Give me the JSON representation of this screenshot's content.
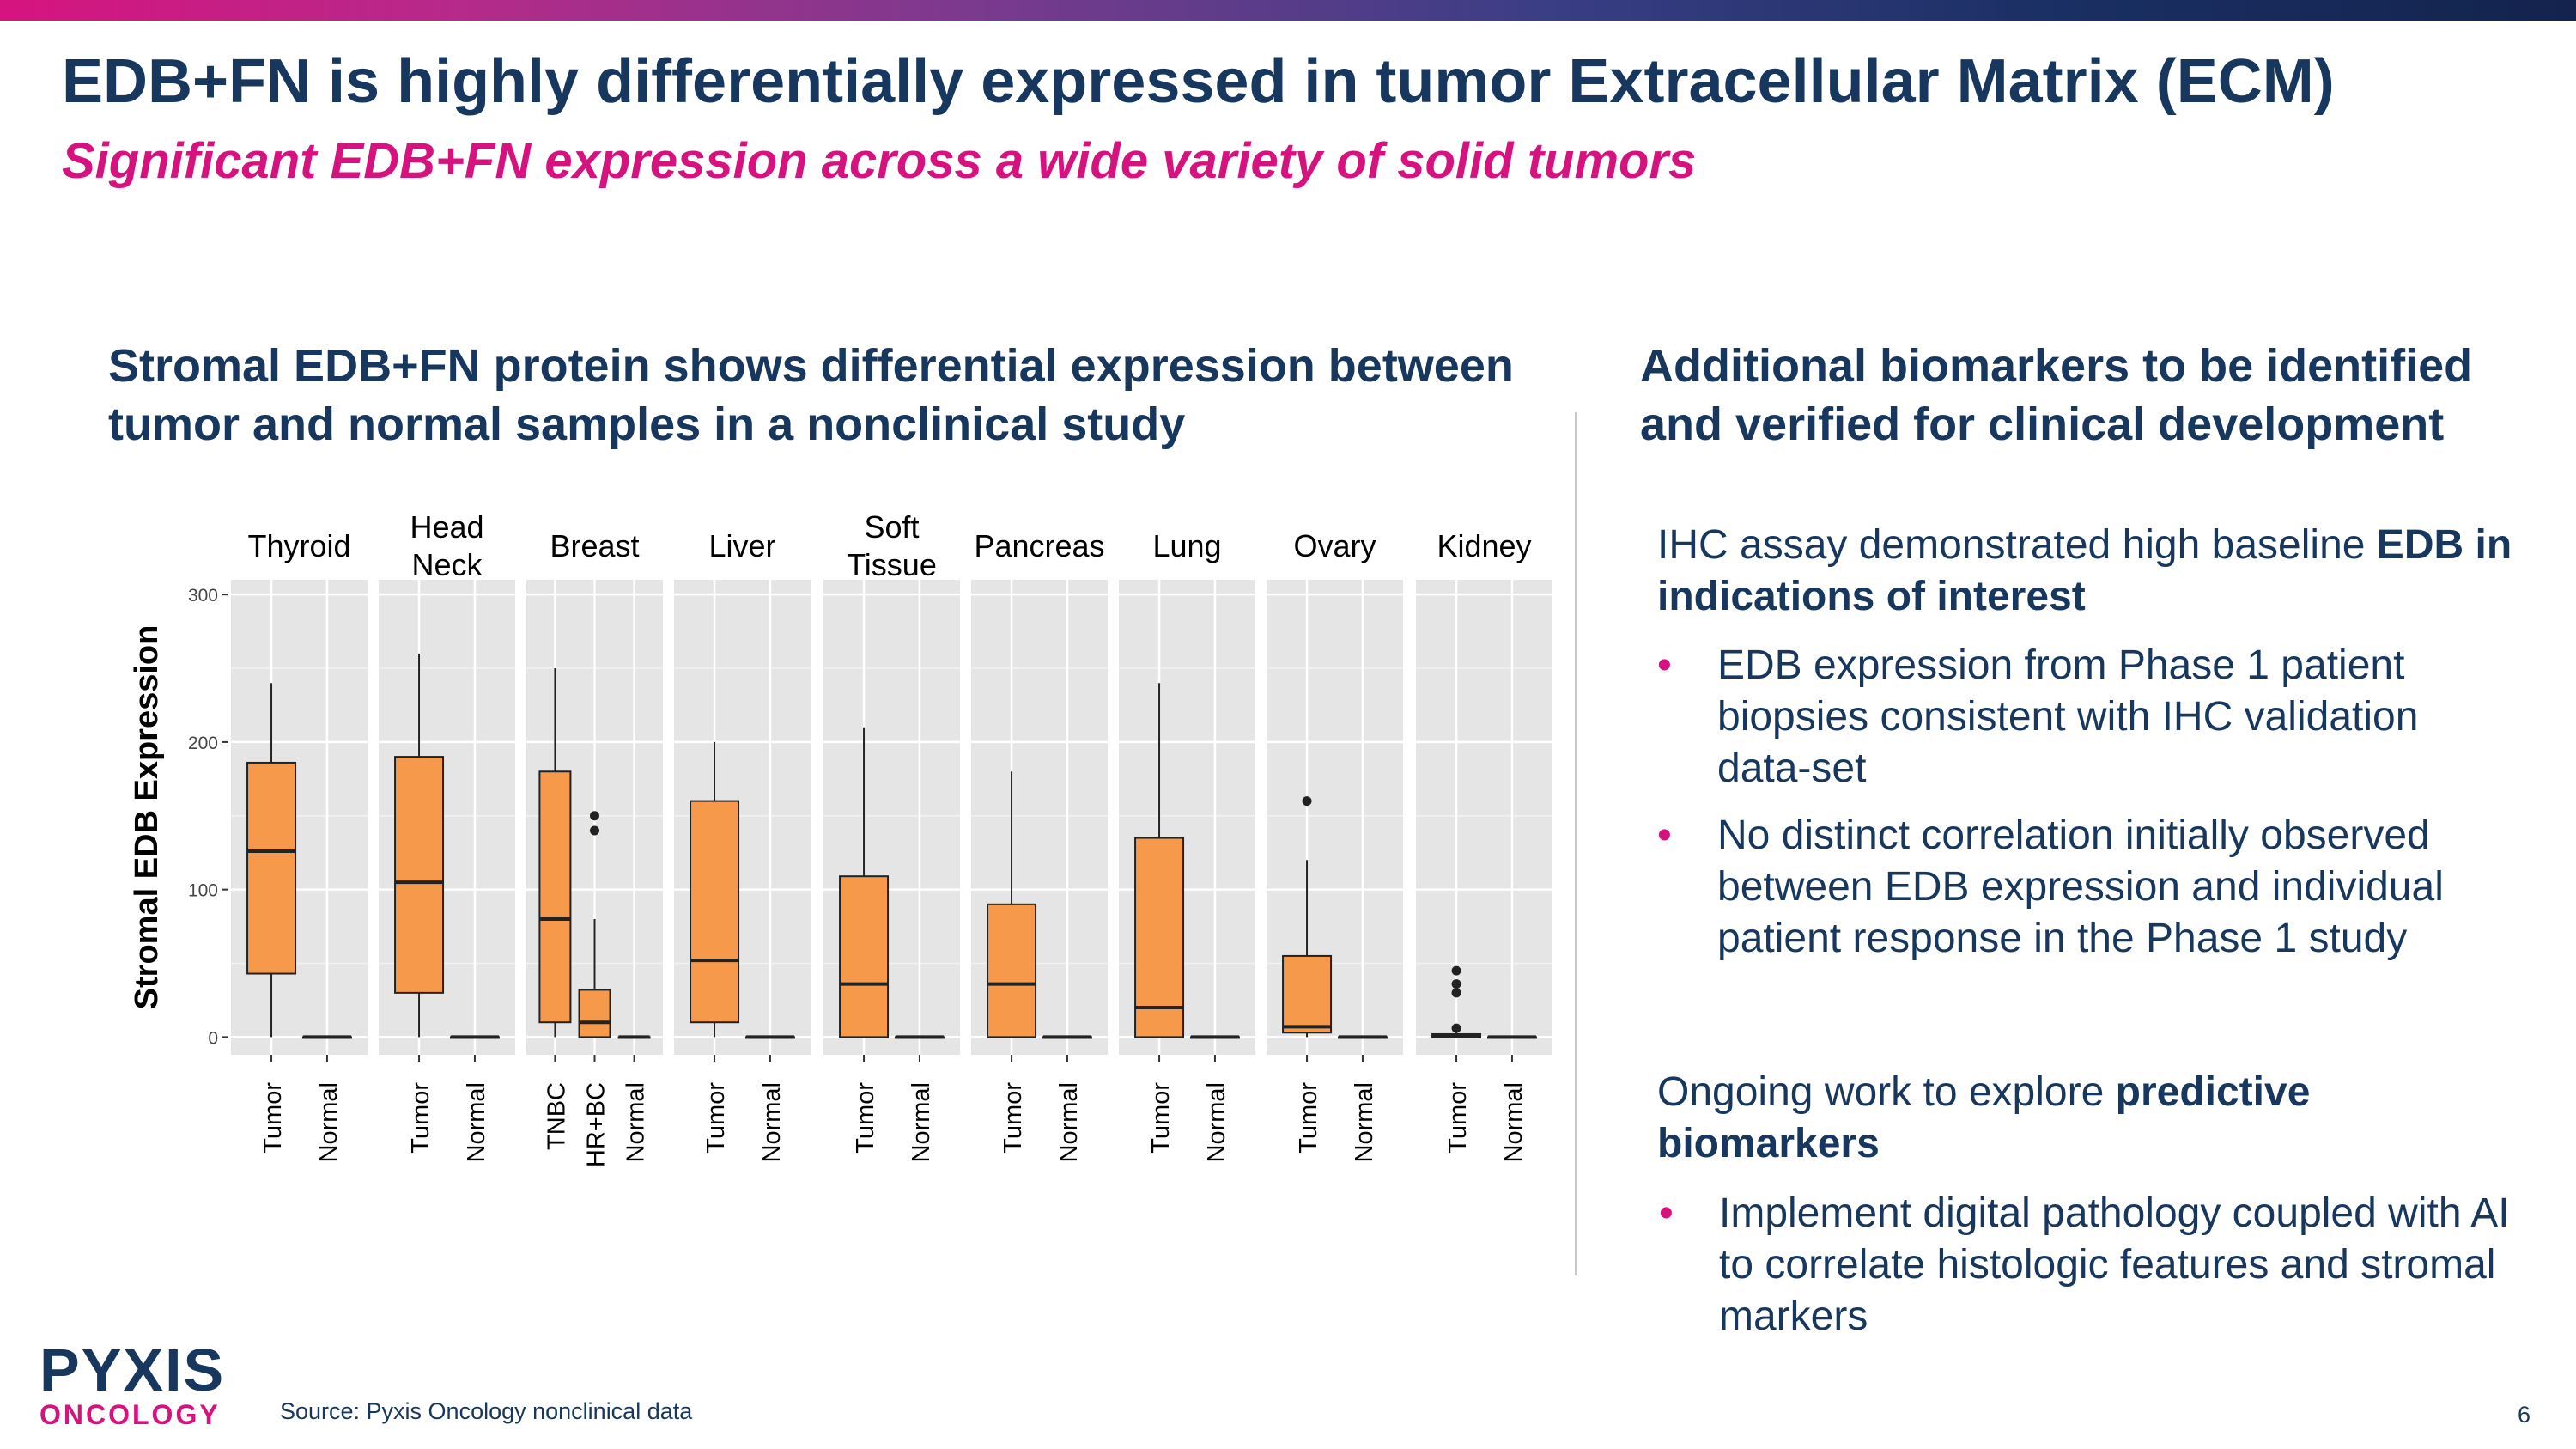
{
  "slide": {
    "title": "EDB+FN is highly differentially expressed in tumor Extracellular Matrix (ECM)",
    "subtitle": "Significant EDB+FN expression across a wide variety of solid tumors",
    "left_heading": "Stromal EDB+FN protein shows differential expression between tumor and normal samples in a nonclinical study",
    "right_heading": "Additional biomarkers to be identified and verified for clinical development",
    "p1_text": "IHC assay demonstrated high baseline ",
    "p1_bold": "EDB in indications of interest",
    "bullet1": "EDB expression from Phase 1 patient biopsies consistent with IHC validation data-set",
    "bullet2": "No distinct correlation initially observed between EDB expression and individual patient response in the Phase 1 study",
    "p2_text": "Ongoing work to explore ",
    "p2_bold": "predictive biomarkers",
    "bullet3": "Implement digital pathology coupled with AI to correlate histologic features and stromal markers",
    "bullet_char": "•",
    "source": "Source: Pyxis Oncology nonclinical data",
    "page_number": "6",
    "logo_main": "PYXIS",
    "logo_sub": "ONCOLOGY"
  },
  "colors": {
    "title": "#17375e",
    "accent": "#d6127f",
    "box_fill": "#f7994a",
    "panel_bg": "#e5e5e5"
  },
  "chart_data": {
    "type": "boxplot",
    "ylabel": "Stromal EDB Expression",
    "ylim": [
      -12,
      310
    ],
    "y_ticks": [
      0,
      100,
      200,
      300
    ],
    "facets": [
      {
        "label": [
          "Thyroid"
        ],
        "groups": [
          {
            "name": "Tumor",
            "min": 0,
            "q1": 43,
            "median": 126,
            "q3": 186,
            "max": 240,
            "outliers": []
          },
          {
            "name": "Normal",
            "min": 0,
            "q1": 0,
            "median": 0,
            "q3": 0,
            "max": 0,
            "outliers": []
          }
        ]
      },
      {
        "label": [
          "Head",
          "Neck"
        ],
        "groups": [
          {
            "name": "Tumor",
            "min": 0,
            "q1": 30,
            "median": 105,
            "q3": 190,
            "max": 260,
            "outliers": []
          },
          {
            "name": "Normal",
            "min": 0,
            "q1": 0,
            "median": 0,
            "q3": 0,
            "max": 0,
            "outliers": []
          }
        ]
      },
      {
        "label": [
          "Breast"
        ],
        "groups": [
          {
            "name": "TNBC",
            "min": 0,
            "q1": 10,
            "median": 80,
            "q3": 180,
            "max": 250,
            "outliers": []
          },
          {
            "name": "HR+BC",
            "min": 0,
            "q1": 0,
            "median": 10,
            "q3": 32,
            "max": 80,
            "outliers": [
              140,
              150
            ]
          },
          {
            "name": "Normal",
            "min": 0,
            "q1": 0,
            "median": 0,
            "q3": 0,
            "max": 0,
            "outliers": []
          }
        ]
      },
      {
        "label": [
          "Liver"
        ],
        "groups": [
          {
            "name": "Tumor",
            "min": 0,
            "q1": 10,
            "median": 52,
            "q3": 160,
            "max": 200,
            "outliers": []
          },
          {
            "name": "Normal",
            "min": 0,
            "q1": 0,
            "median": 0,
            "q3": 0,
            "max": 0,
            "outliers": []
          }
        ]
      },
      {
        "label": [
          "Soft",
          "Tissue"
        ],
        "groups": [
          {
            "name": "Tumor",
            "min": 0,
            "q1": 0,
            "median": 36,
            "q3": 109,
            "max": 210,
            "outliers": []
          },
          {
            "name": "Normal",
            "min": 0,
            "q1": 0,
            "median": 0,
            "q3": 0,
            "max": 0,
            "outliers": []
          }
        ]
      },
      {
        "label": [
          "Pancreas"
        ],
        "groups": [
          {
            "name": "Tumor",
            "min": 0,
            "q1": 0,
            "median": 36,
            "q3": 90,
            "max": 180,
            "outliers": []
          },
          {
            "name": "Normal",
            "min": 0,
            "q1": 0,
            "median": 0,
            "q3": 0,
            "max": 0,
            "outliers": []
          }
        ]
      },
      {
        "label": [
          "Lung"
        ],
        "groups": [
          {
            "name": "Tumor",
            "min": 0,
            "q1": 0,
            "median": 20,
            "q3": 135,
            "max": 240,
            "outliers": []
          },
          {
            "name": "Normal",
            "min": 0,
            "q1": 0,
            "median": 0,
            "q3": 0,
            "max": 0,
            "outliers": []
          }
        ]
      },
      {
        "label": [
          "Ovary"
        ],
        "groups": [
          {
            "name": "Tumor",
            "min": 0,
            "q1": 3,
            "median": 7,
            "q3": 55,
            "max": 120,
            "outliers": [
              160
            ]
          },
          {
            "name": "Normal",
            "min": 0,
            "q1": 0,
            "median": 0,
            "q3": 0,
            "max": 0,
            "outliers": []
          }
        ]
      },
      {
        "label": [
          "Kidney"
        ],
        "groups": [
          {
            "name": "Tumor",
            "min": 0,
            "q1": 0,
            "median": 1,
            "q3": 2,
            "max": 3,
            "outliers": [
              6,
              30,
              36,
              45
            ]
          },
          {
            "name": "Normal",
            "min": 0,
            "q1": 0,
            "median": 0,
            "q3": 0,
            "max": 0,
            "outliers": []
          }
        ]
      }
    ]
  }
}
